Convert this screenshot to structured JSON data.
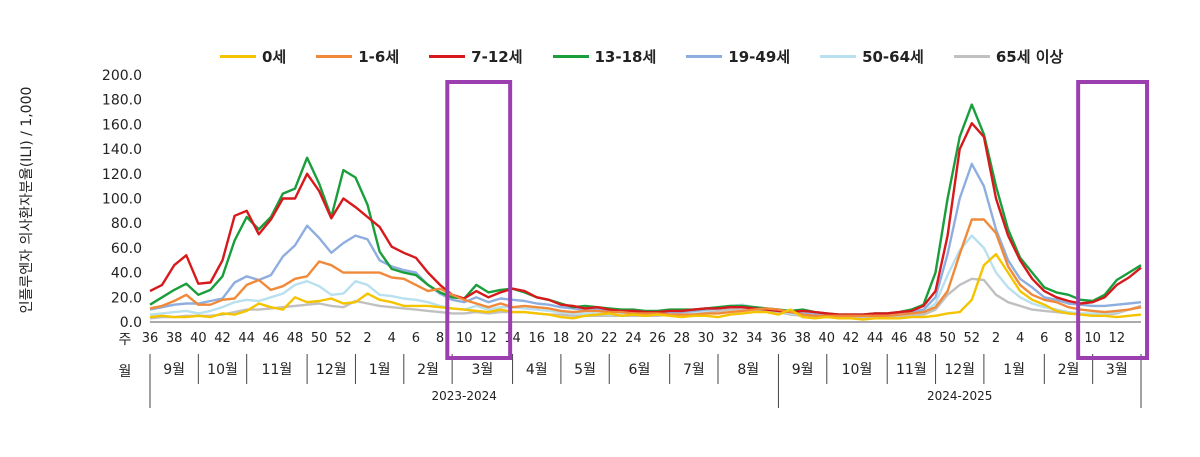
{
  "chart_data": {
    "type": "line",
    "ylabel": "인플루엔자 의사환자분율(ILI) / 1,000",
    "ylim": [
      0,
      200
    ],
    "yticks": [
      "0.0",
      "20.0",
      "40.0",
      "60.0",
      "80.0",
      "100.0",
      "120.0",
      "140.0",
      "160.0",
      "180.0",
      "200.0"
    ],
    "row_labels": {
      "week": "주",
      "month": "월"
    },
    "week_tick_labels": [
      "36",
      "38",
      "40",
      "42",
      "44",
      "46",
      "48",
      "50",
      "52",
      "2",
      "4",
      "6",
      "8",
      "10",
      "12",
      "14",
      "16",
      "18",
      "20",
      "22",
      "24",
      "26",
      "28",
      "30",
      "32",
      "34",
      "36",
      "38",
      "40",
      "42",
      "44",
      "46",
      "48",
      "50",
      "52",
      "2",
      "4",
      "6",
      "8",
      "10",
      "12"
    ],
    "months": [
      {
        "label": "9월",
        "start": 0,
        "end": 4
      },
      {
        "label": "10월",
        "start": 4,
        "end": 8
      },
      {
        "label": "11월",
        "start": 8,
        "end": 13
      },
      {
        "label": "12월",
        "start": 13,
        "end": 17
      },
      {
        "label": "1월",
        "start": 17,
        "end": 21
      },
      {
        "label": "2월",
        "start": 21,
        "end": 25
      },
      {
        "label": "3월",
        "start": 25,
        "end": 30
      },
      {
        "label": "4월",
        "start": 30,
        "end": 34
      },
      {
        "label": "5월",
        "start": 34,
        "end": 38
      },
      {
        "label": "6월",
        "start": 38,
        "end": 43
      },
      {
        "label": "7월",
        "start": 43,
        "end": 47
      },
      {
        "label": "8월",
        "start": 47,
        "end": 52
      },
      {
        "label": "9월",
        "start": 52,
        "end": 56
      },
      {
        "label": "10월",
        "start": 56,
        "end": 61
      },
      {
        "label": "11월",
        "start": 61,
        "end": 65
      },
      {
        "label": "12월",
        "start": 65,
        "end": 69
      },
      {
        "label": "1월",
        "start": 69,
        "end": 74
      },
      {
        "label": "2월",
        "start": 74,
        "end": 78
      },
      {
        "label": "3월",
        "start": 78,
        "end": 82
      }
    ],
    "seasons": [
      {
        "label": "2023-2024",
        "start": 0,
        "end": 52
      },
      {
        "label": "2024-2025",
        "start": 52,
        "end": 82
      }
    ],
    "highlight_boxes": [
      {
        "start": 24.6,
        "end": 29.8,
        "color": "#9b3fb0"
      },
      {
        "start": 76.8,
        "end": 82.5,
        "color": "#9b3fb0"
      }
    ],
    "series": [
      {
        "name": "0세",
        "color": "#f4c400",
        "values": [
          4,
          5,
          4,
          4,
          5,
          4,
          7,
          6,
          9,
          15,
          12,
          10,
          20,
          16,
          17,
          19,
          15,
          16,
          23,
          18,
          16,
          13,
          13,
          13,
          12,
          11,
          10,
          9,
          8,
          10,
          8,
          8,
          7,
          6,
          4,
          3,
          5,
          6,
          7,
          5,
          6,
          5,
          6,
          5,
          4,
          5,
          5,
          4,
          6,
          7,
          8,
          8,
          6,
          10,
          4,
          3,
          4,
          3,
          3,
          2,
          3,
          3,
          3,
          4,
          4,
          5,
          7,
          8,
          18,
          46,
          55,
          40,
          25,
          18,
          14,
          9,
          7,
          6,
          5,
          5,
          4,
          5,
          6
        ]
      },
      {
        "name": "1-6세",
        "color": "#f08a3a",
        "values": [
          11,
          13,
          17,
          22,
          14,
          14,
          18,
          19,
          30,
          34,
          26,
          29,
          35,
          37,
          49,
          46,
          40,
          40,
          40,
          40,
          36,
          35,
          30,
          25,
          27,
          22,
          18,
          15,
          12,
          15,
          12,
          13,
          12,
          11,
          9,
          8,
          9,
          9,
          8,
          8,
          7,
          7,
          7,
          6,
          6,
          6,
          7,
          7,
          8,
          9,
          10,
          11,
          10,
          8,
          6,
          5,
          5,
          5,
          5,
          5,
          5,
          5,
          6,
          7,
          8,
          12,
          25,
          55,
          83,
          83,
          72,
          45,
          30,
          22,
          18,
          16,
          12,
          10,
          9,
          8,
          9,
          10,
          12
        ]
      },
      {
        "name": "7-12세",
        "color": "#d7191c",
        "values": [
          25,
          30,
          46,
          54,
          31,
          32,
          50,
          86,
          90,
          71,
          83,
          100,
          100,
          120,
          106,
          84,
          100,
          93,
          85,
          77,
          61,
          56,
          52,
          40,
          30,
          22,
          19,
          25,
          20,
          24,
          27,
          25,
          20,
          18,
          14,
          13,
          11,
          12,
          10,
          9,
          9,
          8,
          8,
          9,
          9,
          10,
          11,
          11,
          12,
          12,
          11,
          10,
          9,
          8,
          9,
          8,
          7,
          6,
          6,
          6,
          7,
          7,
          8,
          9,
          13,
          25,
          70,
          140,
          161,
          150,
          100,
          70,
          50,
          35,
          25,
          20,
          17,
          15,
          16,
          20,
          30,
          36,
          44
        ]
      },
      {
        "name": "13-18세",
        "color": "#1a9e3c",
        "values": [
          14,
          20,
          26,
          31,
          22,
          26,
          37,
          66,
          85,
          75,
          85,
          104,
          108,
          133,
          112,
          85,
          123,
          117,
          95,
          57,
          43,
          40,
          38,
          30,
          24,
          20,
          19,
          30,
          24,
          26,
          27,
          24,
          20,
          18,
          15,
          12,
          13,
          12,
          11,
          10,
          10,
          9,
          9,
          10,
          10,
          10,
          11,
          12,
          13,
          13,
          12,
          11,
          10,
          9,
          10,
          8,
          7,
          6,
          6,
          6,
          7,
          7,
          8,
          10,
          14,
          40,
          100,
          150,
          176,
          152,
          110,
          75,
          52,
          40,
          28,
          24,
          22,
          18,
          17,
          22,
          34,
          40,
          46
        ]
      },
      {
        "name": "19-49세",
        "color": "#8faee0",
        "values": [
          10,
          12,
          14,
          15,
          15,
          17,
          19,
          32,
          37,
          34,
          38,
          53,
          62,
          78,
          68,
          56,
          64,
          70,
          67,
          50,
          45,
          42,
          40,
          30,
          23,
          18,
          16,
          20,
          16,
          19,
          18,
          17,
          15,
          14,
          12,
          11,
          10,
          10,
          9,
          8,
          8,
          8,
          7,
          8,
          8,
          9,
          10,
          11,
          12,
          13,
          12,
          11,
          10,
          8,
          7,
          6,
          5,
          5,
          5,
          5,
          5,
          6,
          7,
          8,
          10,
          20,
          55,
          100,
          128,
          110,
          75,
          50,
          35,
          28,
          20,
          18,
          15,
          14,
          13,
          13,
          14,
          15,
          16
        ]
      },
      {
        "name": "50-64세",
        "color": "#b8e0ee",
        "values": [
          6,
          7,
          8,
          9,
          7,
          9,
          12,
          16,
          18,
          17,
          20,
          23,
          30,
          33,
          29,
          22,
          23,
          33,
          30,
          22,
          21,
          19,
          18,
          16,
          13,
          11,
          10,
          13,
          10,
          12,
          12,
          11,
          10,
          9,
          8,
          7,
          7,
          7,
          6,
          6,
          6,
          6,
          6,
          6,
          7,
          8,
          9,
          11,
          13,
          14,
          12,
          10,
          9,
          7,
          6,
          5,
          5,
          5,
          5,
          5,
          5,
          5,
          6,
          7,
          8,
          15,
          38,
          58,
          70,
          60,
          40,
          28,
          20,
          15,
          12,
          10,
          8,
          7,
          7,
          7,
          8,
          10,
          12
        ]
      },
      {
        "name": "65세 이상",
        "color": "#c0c0c0",
        "values": [
          3,
          4,
          4,
          5,
          5,
          5,
          6,
          8,
          10,
          10,
          11,
          12,
          13,
          14,
          15,
          13,
          12,
          17,
          15,
          13,
          12,
          11,
          10,
          9,
          8,
          7,
          7,
          8,
          7,
          8,
          8,
          8,
          7,
          6,
          6,
          5,
          5,
          5,
          5,
          5,
          5,
          5,
          5,
          6,
          6,
          7,
          8,
          9,
          10,
          11,
          10,
          9,
          8,
          6,
          5,
          5,
          4,
          4,
          4,
          4,
          4,
          4,
          5,
          5,
          6,
          10,
          22,
          30,
          35,
          34,
          22,
          16,
          13,
          10,
          9,
          8,
          7,
          6,
          6,
          6,
          7,
          10,
          13
        ]
      }
    ]
  }
}
